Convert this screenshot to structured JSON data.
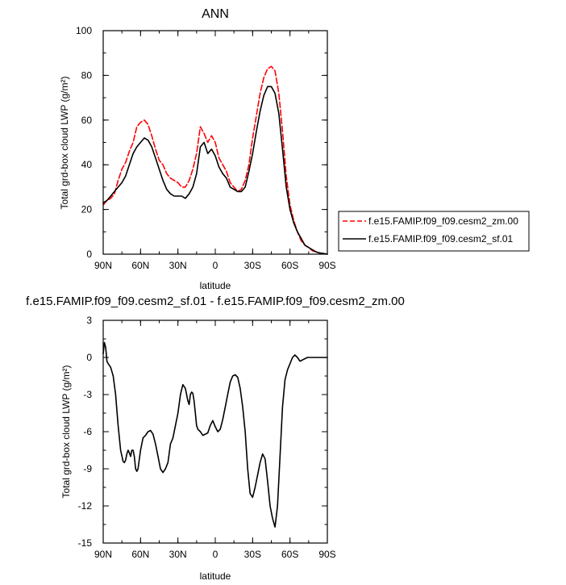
{
  "chart_data": [
    {
      "type": "line",
      "title": "ANN",
      "xlabel": "latitude",
      "ylabel": "Total grd-box cloud LWP (g/m²)",
      "xlim": [
        90,
        -90
      ],
      "ylim": [
        0,
        100
      ],
      "xticks": [
        90,
        60,
        30,
        0,
        -30,
        -60,
        -90
      ],
      "xtick_labels": [
        "90N",
        "60N",
        "30N",
        "0",
        "30S",
        "60S",
        "90S"
      ],
      "yticks": [
        0,
        20,
        40,
        60,
        80,
        100
      ],
      "ytick_labels": [
        "0",
        "20",
        "40",
        "60",
        "80",
        "100"
      ],
      "legend_position": "right",
      "series": [
        {
          "name": "f.e15.FAMIP.f09_f09.cesm2_zm.00",
          "color": "#ff0000",
          "dash": "dashed",
          "x": [
            90,
            87,
            84,
            81,
            78,
            75,
            72,
            69,
            66,
            63,
            60,
            57,
            54,
            51,
            48,
            45,
            42,
            39,
            36,
            33,
            30,
            27,
            24,
            21,
            18,
            15,
            12,
            9,
            6,
            3,
            0,
            -3,
            -6,
            -9,
            -12,
            -15,
            -18,
            -21,
            -24,
            -27,
            -30,
            -33,
            -36,
            -39,
            -42,
            -45,
            -48,
            -51,
            -54,
            -57,
            -60,
            -63,
            -66,
            -69,
            -72,
            -75,
            -78,
            -81,
            -84,
            -87,
            -90
          ],
          "y": [
            22,
            24,
            25,
            27,
            33,
            38,
            41,
            46,
            50,
            57,
            59,
            60,
            58,
            53,
            47,
            42,
            40,
            36,
            34,
            33,
            32,
            30,
            30,
            33,
            38,
            45,
            57,
            54,
            50,
            53,
            50,
            43,
            40,
            37,
            32,
            30,
            28,
            29,
            33,
            40,
            52,
            62,
            72,
            79,
            83,
            84,
            82,
            72,
            55,
            35,
            22,
            15,
            10,
            6,
            4,
            3,
            1.5,
            1,
            0.5,
            0.3,
            0
          ]
        },
        {
          "name": "f.e15.FAMIP.f09_f09.cesm2_sf.01",
          "color": "#000000",
          "dash": "solid",
          "x": [
            90,
            87,
            84,
            81,
            78,
            75,
            72,
            69,
            66,
            63,
            60,
            57,
            54,
            51,
            48,
            45,
            42,
            39,
            36,
            33,
            30,
            27,
            24,
            21,
            18,
            15,
            12,
            9,
            6,
            3,
            0,
            -3,
            -6,
            -9,
            -12,
            -15,
            -18,
            -21,
            -24,
            -27,
            -30,
            -33,
            -36,
            -39,
            -42,
            -45,
            -48,
            -51,
            -54,
            -57,
            -60,
            -63,
            -66,
            -69,
            -72,
            -75,
            -78,
            -81,
            -84,
            -87,
            -90
          ],
          "y": [
            23,
            24,
            26,
            28,
            30,
            32,
            35,
            40,
            45,
            48,
            50,
            52,
            51,
            48,
            43,
            38,
            33,
            29,
            27,
            26,
            26,
            26,
            25,
            27,
            30,
            36,
            48,
            50,
            45,
            47,
            44,
            39,
            36,
            34,
            30,
            29,
            28,
            28,
            30,
            37,
            45,
            55,
            64,
            71,
            75,
            75,
            72,
            63,
            47,
            30,
            20,
            14,
            10,
            7,
            4,
            3,
            2,
            1,
            0.5,
            0.3,
            0
          ]
        }
      ]
    },
    {
      "type": "line",
      "title": "f.e15.FAMIP.f09_f09.cesm2_sf.01 - f.e15.FAMIP.f09_f09.cesm2_zm.00",
      "xlabel": "latitude",
      "ylabel": "Total grd-box cloud LWP (g/m²)",
      "xlim": [
        90,
        -90
      ],
      "ylim": [
        -15,
        3
      ],
      "xticks": [
        90,
        60,
        30,
        0,
        -30,
        -60,
        -90
      ],
      "xtick_labels": [
        "90N",
        "60N",
        "30N",
        "0",
        "30S",
        "60S",
        "90S"
      ],
      "yticks": [
        3,
        0,
        -3,
        -6,
        -9,
        -12,
        -15
      ],
      "ytick_labels": [
        "3",
        "0",
        "-3",
        "-6",
        "-9",
        "-12",
        "-15"
      ],
      "series": [
        {
          "color": "#000000",
          "dash": "solid",
          "x": [
            90,
            89,
            88,
            87,
            86,
            84,
            82,
            80,
            78,
            76,
            74,
            73,
            72,
            71,
            70,
            69,
            68,
            67,
            66,
            65,
            64,
            63,
            62,
            60,
            58,
            56,
            54,
            52,
            50,
            48,
            46,
            44,
            42,
            40,
            38,
            36,
            34,
            32,
            30,
            28,
            26,
            24,
            22,
            21,
            20,
            19,
            18,
            17,
            16,
            15,
            14,
            12,
            10,
            8,
            6,
            4,
            2,
            0,
            -2,
            -4,
            -6,
            -8,
            -10,
            -12,
            -14,
            -16,
            -18,
            -20,
            -22,
            -24,
            -26,
            -28,
            -30,
            -32,
            -34,
            -36,
            -38,
            -40,
            -42,
            -44,
            -46,
            -48,
            -50,
            -52,
            -54,
            -56,
            -58,
            -60,
            -62,
            -64,
            -66,
            -68,
            -70,
            -72,
            -74,
            -76,
            -78,
            -80,
            -82,
            -84,
            -86,
            -88,
            -90
          ],
          "y": [
            0.3,
            1.2,
            0.8,
            -0.3,
            -0.5,
            -0.8,
            -1.5,
            -3.0,
            -5.5,
            -7.5,
            -8.4,
            -8.5,
            -8.3,
            -7.8,
            -7.5,
            -7.7,
            -8.0,
            -7.5,
            -7.5,
            -8.0,
            -9.0,
            -9.2,
            -9.0,
            -7.5,
            -6.5,
            -6.3,
            -6.0,
            -5.9,
            -6.2,
            -7.0,
            -8.0,
            -9.0,
            -9.3,
            -9.0,
            -8.5,
            -7.0,
            -6.5,
            -5.5,
            -4.5,
            -3.0,
            -2.2,
            -2.5,
            -3.5,
            -3.8,
            -3.0,
            -2.8,
            -2.9,
            -3.5,
            -4.5,
            -5.5,
            -5.8,
            -6.0,
            -6.3,
            -6.2,
            -6.1,
            -5.5,
            -5.1,
            -5.6,
            -6.0,
            -5.8,
            -5.0,
            -4.0,
            -3.0,
            -2.0,
            -1.5,
            -1.4,
            -1.6,
            -2.5,
            -4.0,
            -6.0,
            -9.0,
            -11.0,
            -11.3,
            -10.5,
            -9.5,
            -8.5,
            -7.8,
            -8.2,
            -10.0,
            -12.0,
            -13.0,
            -13.7,
            -12.0,
            -8.0,
            -4.0,
            -1.8,
            -1.0,
            -0.5,
            0.0,
            0.2,
            0.0,
            -0.3,
            -0.2,
            -0.1,
            0.0,
            0.0,
            0.0,
            0.0,
            0.0,
            0.0,
            0.0,
            0.0,
            0.0
          ]
        }
      ]
    }
  ]
}
